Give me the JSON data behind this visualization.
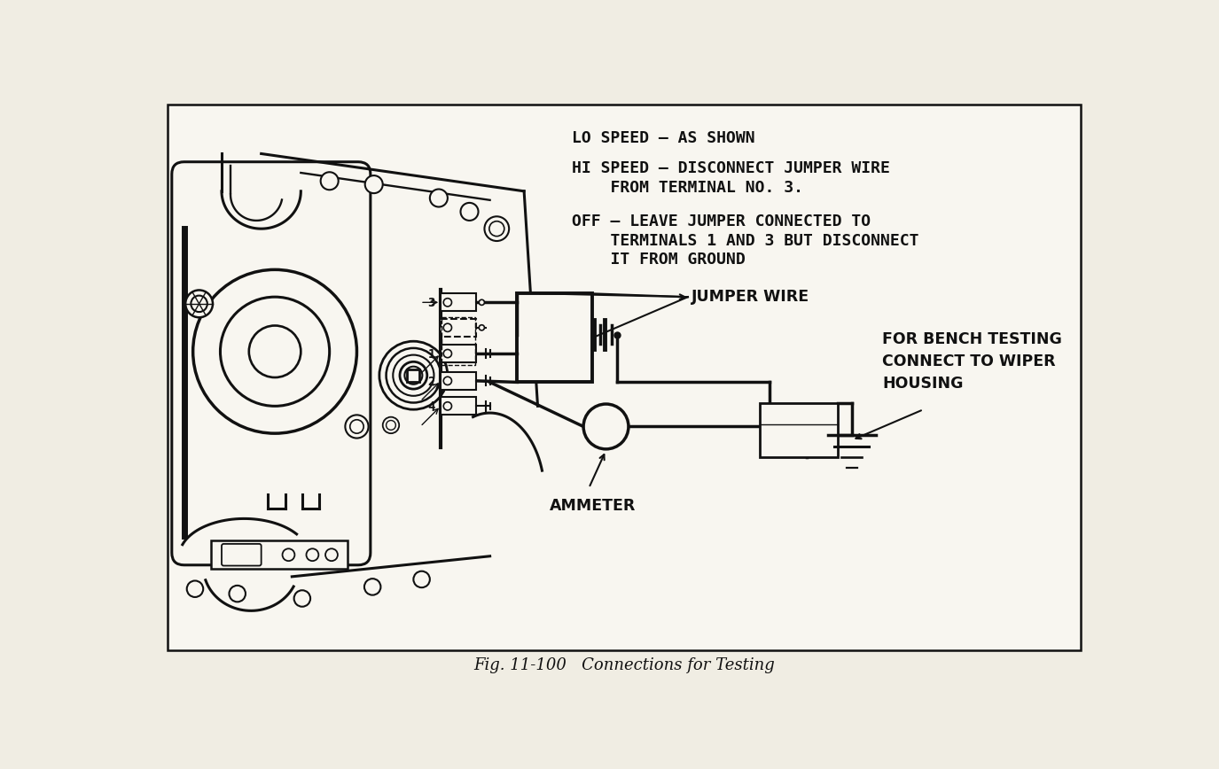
{
  "bg_color": "#f0ede3",
  "paper_color": "#f8f6f0",
  "line_color": "#111111",
  "text_color": "#111111",
  "title": "Fig. 11-100   Connections for Testing",
  "instr1": "LO SPEED – AS SHOWN",
  "instr2a": "HI SPEED – DISCONNECT JUMPER WIRE",
  "instr2b": "    FROM TERMINAL NO. 3.",
  "instr3a": "OFF – LEAVE JUMPER CONNECTED TO",
  "instr3b": "    TERMINALS 1 AND 3 BUT DISCONNECT",
  "instr3c": "    IT FROM GROUND",
  "label_jumper": "JUMPER WIRE",
  "label_ammeter": "AMMETER",
  "label_bench": "FOR BENCH TESTING\nCONNECT TO WIPER\nHOUSING"
}
